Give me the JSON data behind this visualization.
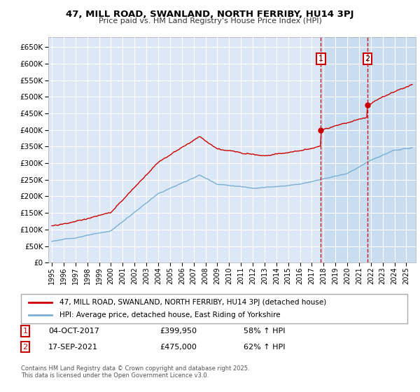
{
  "title": "47, MILL ROAD, SWANLAND, NORTH FERRIBY, HU14 3PJ",
  "subtitle": "Price paid vs. HM Land Registry's House Price Index (HPI)",
  "legend_line1": "47, MILL ROAD, SWANLAND, NORTH FERRIBY, HU14 3PJ (detached house)",
  "legend_line2": "HPI: Average price, detached house, East Riding of Yorkshire",
  "footnote": "Contains HM Land Registry data © Crown copyright and database right 2025.\nThis data is licensed under the Open Government Licence v3.0.",
  "marker1_date": "04-OCT-2017",
  "marker1_price": "£399,950",
  "marker1_hpi": "58% ↑ HPI",
  "marker1_label": "1",
  "marker2_date": "17-SEP-2021",
  "marker2_price": "£475,000",
  "marker2_hpi": "62% ↑ HPI",
  "marker2_label": "2",
  "ylim": [
    0,
    680000
  ],
  "yticks": [
    0,
    50000,
    100000,
    150000,
    200000,
    250000,
    300000,
    350000,
    400000,
    450000,
    500000,
    550000,
    600000,
    650000
  ],
  "xlim_start": 1994.7,
  "xlim_end": 2025.8,
  "plot_bg_color": "#dce8f5",
  "red_color": "#cc0000",
  "blue_color": "#7aafd4",
  "marker1_x": 2017.76,
  "marker2_x": 2021.71,
  "marker1_price_val": 399950,
  "marker2_price_val": 475000,
  "vline_color": "#cc0000",
  "span1_color": "#c8ddf0",
  "span2_color": "#c8ddf0"
}
